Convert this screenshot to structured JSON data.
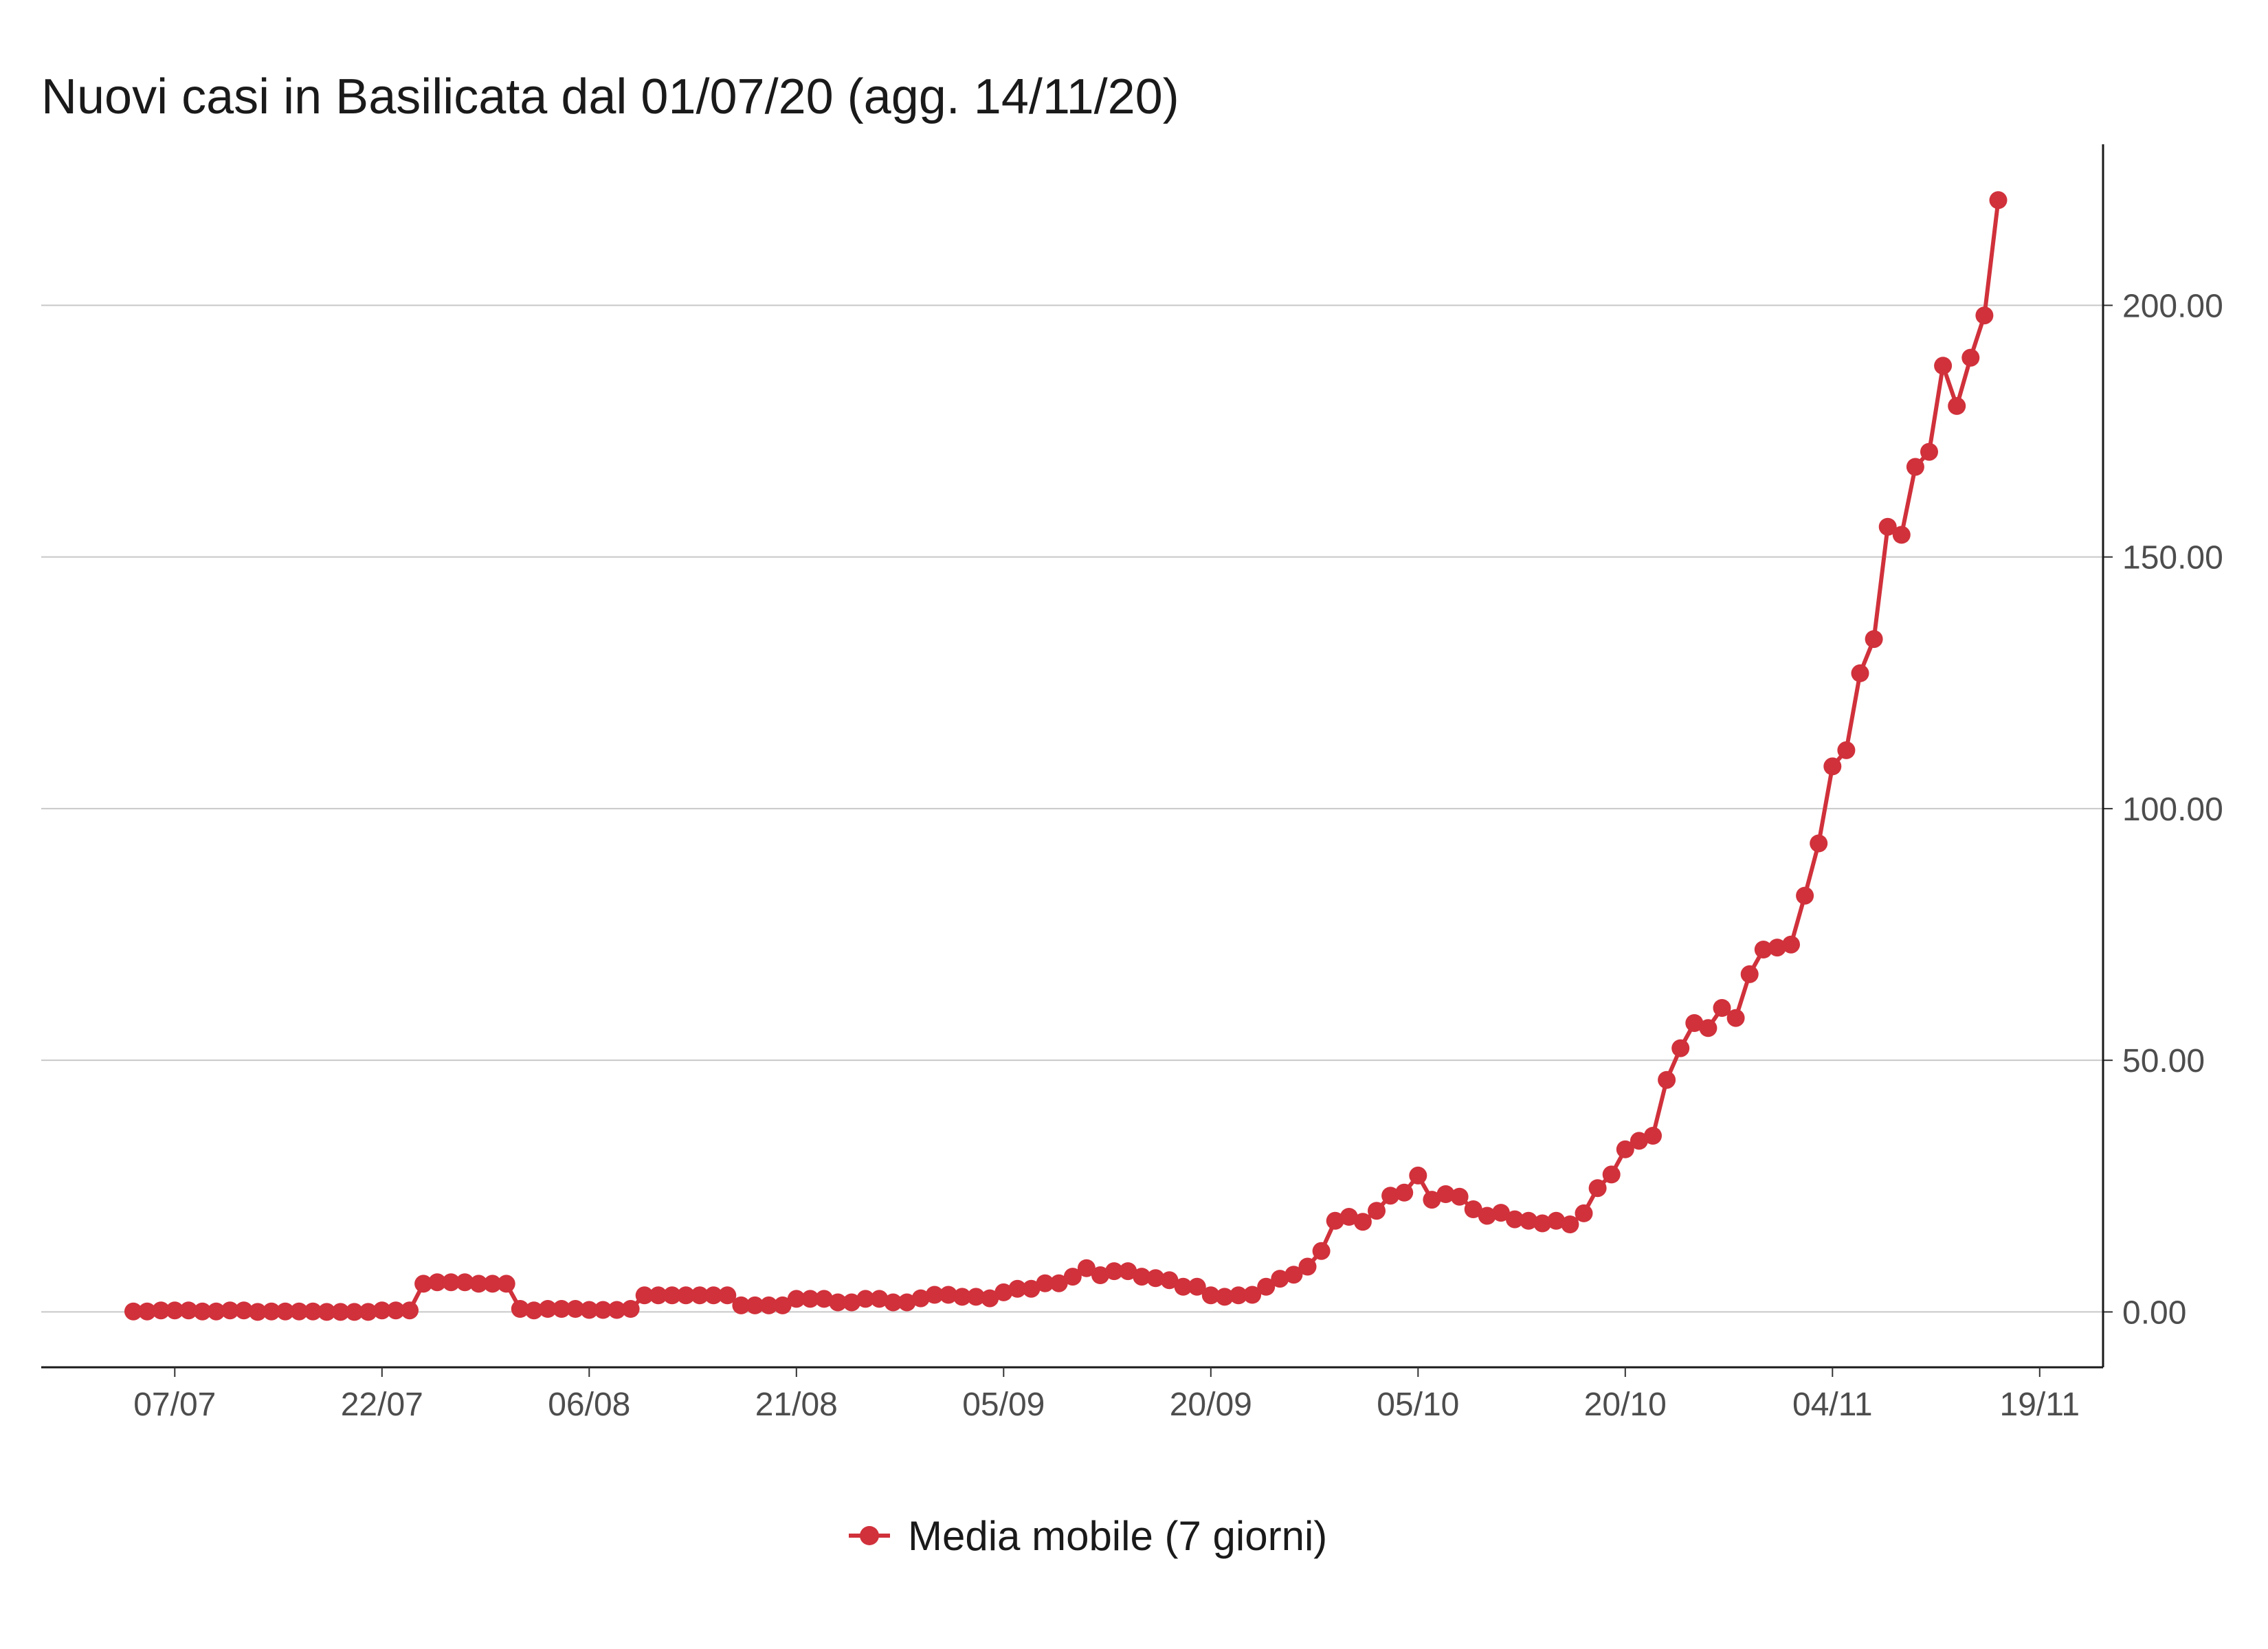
{
  "chart_data": {
    "type": "line",
    "title": "Nuovi casi in Basilicata dal 01/07/20 (agg. 14/11/20)",
    "xlabel": "",
    "ylabel": "",
    "x_start": "01/07",
    "x_ticks": [
      {
        "label": "07/07",
        "day": 6
      },
      {
        "label": "22/07",
        "day": 21
      },
      {
        "label": "06/08",
        "day": 36
      },
      {
        "label": "21/08",
        "day": 51
      },
      {
        "label": "05/09",
        "day": 66
      },
      {
        "label": "20/09",
        "day": 81
      },
      {
        "label": "05/10",
        "day": 96
      },
      {
        "label": "20/10",
        "day": 111
      },
      {
        "label": "04/11",
        "day": 126
      },
      {
        "label": "19/11",
        "day": 141
      }
    ],
    "y_ticks": [
      {
        "label": "0.00",
        "value": 0
      },
      {
        "label": "50.00",
        "value": 50
      },
      {
        "label": "100.00",
        "value": 100
      },
      {
        "label": "150.00",
        "value": 150
      },
      {
        "label": "200.00",
        "value": 200
      }
    ],
    "ylim": [
      -11,
      232
    ],
    "grid": true,
    "legend_position": "bottom",
    "series": [
      {
        "name": "Media mobile (7 giorni)",
        "color": "#d0313b",
        "values": [
          0.1,
          0.1,
          0.3,
          0.3,
          0.3,
          0.1,
          0.1,
          0.3,
          0.3,
          0,
          0.1,
          0.1,
          0.1,
          0.1,
          0,
          0,
          0,
          0,
          0.3,
          0.3,
          0.3,
          5.6,
          5.9,
          5.9,
          5.9,
          5.6,
          5.6,
          5.6,
          0.6,
          0.3,
          0.6,
          0.6,
          0.6,
          0.4,
          0.4,
          0.4,
          0.6,
          3.3,
          3.3,
          3.3,
          3.3,
          3.3,
          3.3,
          3.3,
          1.3,
          1.3,
          1.3,
          1.3,
          2.6,
          2.6,
          2.6,
          1.9,
          1.9,
          2.6,
          2.6,
          1.9,
          1.9,
          2.7,
          3.4,
          3.4,
          3.0,
          3.0,
          2.7,
          3.9,
          4.6,
          4.6,
          5.7,
          5.7,
          7.0,
          8.7,
          7.3,
          8.1,
          8.1,
          7.0,
          6.7,
          6.3,
          5.0,
          5.0,
          3.3,
          3.0,
          3.3,
          3.4,
          5.0,
          6.6,
          7.4,
          9.0,
          12.1,
          18.1,
          18.9,
          17.9,
          20.1,
          23.1,
          23.7,
          27.1,
          22.3,
          23.4,
          22.9,
          20.4,
          19.1,
          19.7,
          18.4,
          18.1,
          17.6,
          18.1,
          17.4,
          19.6,
          24.6,
          27.3,
          32.3,
          34.0,
          35.0,
          46.1,
          52.4,
          57.4,
          56.4,
          60.4,
          58.4,
          67.1,
          72.0,
          72.4,
          73.0,
          82.7,
          93.1,
          108.4,
          111.6,
          126.9,
          133.7,
          156.0,
          154.4,
          167.9,
          170.9,
          188.0,
          180.0,
          189.6,
          198.0,
          220.9
        ]
      }
    ]
  }
}
